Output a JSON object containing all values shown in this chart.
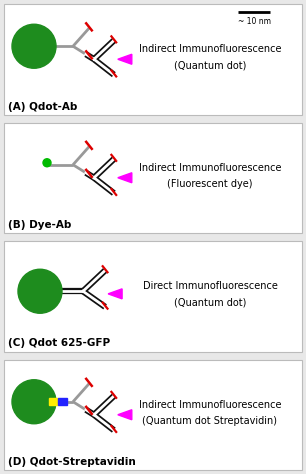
{
  "panels": [
    {
      "label": "(A) Qdot-Ab",
      "title_line1": "Indirect Immunofluorescence",
      "title_line2": "(Quantum dot)",
      "has_big_dot": true,
      "has_small_dot": false,
      "has_streptavidin_bands": false,
      "ab_type": "indirect"
    },
    {
      "label": "(B) Dye-Ab",
      "title_line1": "Indirect Immunofluorescence",
      "title_line2": "(Fluorescent dye)",
      "has_big_dot": false,
      "has_small_dot": true,
      "has_streptavidin_bands": false,
      "ab_type": "indirect"
    },
    {
      "label": "(C) Qdot 625-GFP",
      "title_line1": "Direct Immunofluorescence",
      "title_line2": "(Quantum dot)",
      "has_big_dot": true,
      "has_small_dot": false,
      "has_streptavidin_bands": false,
      "ab_type": "direct"
    },
    {
      "label": "(D) Qdot-Streptavidin",
      "title_line1": "Indirect Immunofluorescence",
      "title_line2": "(Quantum dot Streptavidin)",
      "has_big_dot": true,
      "has_small_dot": false,
      "has_streptavidin_bands": true,
      "ab_type": "indirect"
    }
  ],
  "dot_color": "#1e8c1e",
  "small_dot_color": "#00bb00",
  "bg_color": "#e8e8e8",
  "panel_bg": "#ffffff",
  "border_color": "#bbbbbb",
  "text_color": "#000000",
  "magenta": "#ff00ff",
  "red": "#dd0000",
  "gray": "#999999",
  "black": "#111111",
  "yellow": "#ffee00",
  "blue": "#2222ff"
}
